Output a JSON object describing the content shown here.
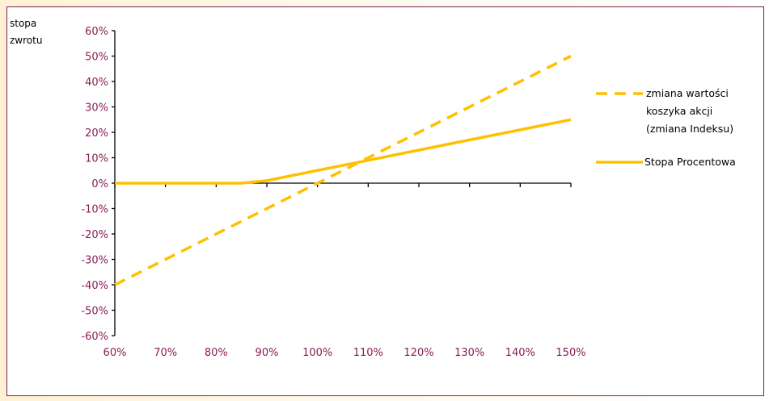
{
  "chart_data": {
    "type": "line",
    "ylabel": [
      "stopa",
      "zwrotu"
    ],
    "xlabel": "",
    "x": [
      0.6,
      0.7,
      0.8,
      0.9,
      1.0,
      1.1,
      1.2,
      1.3,
      1.4,
      1.5
    ],
    "xlim": [
      0.6,
      1.5
    ],
    "ylim": [
      -0.6,
      0.6
    ],
    "x_ticks": [
      0.6,
      0.7,
      0.8,
      0.9,
      1.0,
      1.1,
      1.2,
      1.3,
      1.4,
      1.5
    ],
    "x_tick_labels": [
      "60%",
      "70%",
      "80%",
      "90%",
      "100%",
      "110%",
      "120%",
      "130%",
      "140%",
      "150%"
    ],
    "y_ticks": [
      0.6,
      0.5,
      0.4,
      0.3,
      0.2,
      0.1,
      0.0,
      -0.1,
      -0.2,
      -0.3,
      -0.4,
      -0.5,
      -0.6
    ],
    "y_tick_labels": [
      "60%",
      "50%",
      "40%",
      "30%",
      "20%",
      "10%",
      "0%",
      "-10%",
      "-20%",
      "-30%",
      "-40%",
      "-50%",
      "-60%"
    ],
    "grid": false,
    "legend_position": "right",
    "series": [
      {
        "name": "zmiana wartości koszyka akcji (zmiana Indeksu)",
        "name_lines": [
          "zmiana wartości",
          "koszyka akcji",
          "(zmiana Indeksu)"
        ],
        "style": "dashed",
        "color": "#ffc000",
        "points": [
          [
            0.6,
            -0.4
          ],
          [
            1.5,
            0.5
          ]
        ]
      },
      {
        "name": "Stopa Procentowa",
        "name_lines": [
          "Stopa Procentowa"
        ],
        "style": "solid",
        "color": "#ffc000",
        "points": [
          [
            0.6,
            0.0
          ],
          [
            0.85,
            0.0
          ],
          [
            0.9,
            0.01
          ],
          [
            1.0,
            0.05
          ],
          [
            1.1,
            0.09
          ],
          [
            1.2,
            0.13
          ],
          [
            1.3,
            0.17
          ],
          [
            1.4,
            0.21
          ],
          [
            1.5,
            0.25
          ]
        ]
      }
    ]
  },
  "colors": {
    "axis": "#000000",
    "tick_text": "#8a1d55",
    "frame_border": "#7a1f4a",
    "line": "#ffc000"
  }
}
